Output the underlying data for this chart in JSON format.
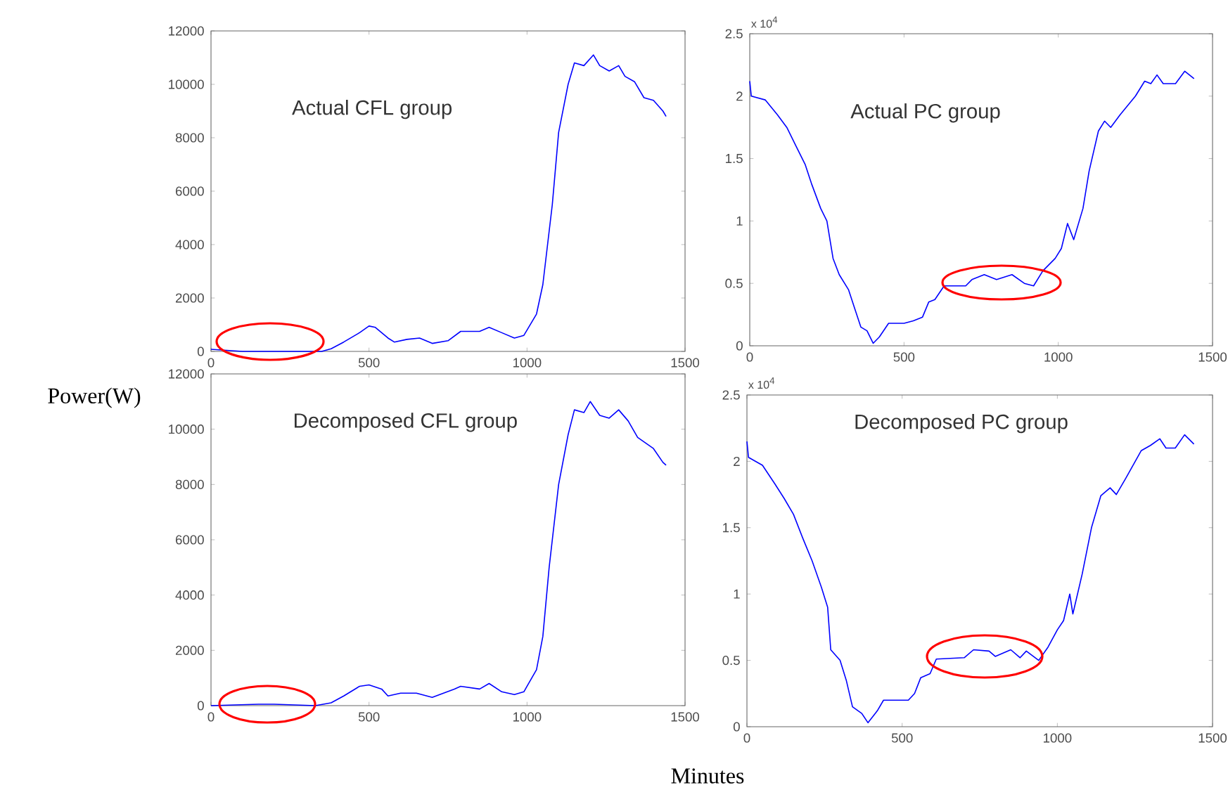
{
  "chart_data": [
    {
      "type": "line",
      "title": "Actual CFL group",
      "ylabel": "Power(W)",
      "color": "#0000ff",
      "x": [
        0,
        100,
        350,
        380,
        420,
        470,
        500,
        520,
        560,
        580,
        620,
        660,
        700,
        750,
        790,
        850,
        880,
        920,
        960,
        990,
        1000,
        1030,
        1050,
        1080,
        1100,
        1130,
        1150,
        1180,
        1210,
        1230,
        1260,
        1290,
        1310,
        1340,
        1370,
        1400,
        1430,
        1440
      ],
      "values": [
        80,
        0,
        0,
        100,
        350,
        700,
        950,
        900,
        500,
        350,
        450,
        500,
        300,
        400,
        750,
        750,
        900,
        700,
        500,
        600,
        800,
        1400,
        2500,
        5500,
        8200,
        10000,
        10800,
        10700,
        11100,
        10700,
        10500,
        10700,
        10300,
        10100,
        9500,
        9400,
        9000,
        8800
      ],
      "xlim": [
        0,
        1500
      ],
      "ylim": [
        0,
        12000
      ],
      "xticks": [
        0,
        500,
        1000,
        1500
      ],
      "yticks": [
        0,
        2000,
        4000,
        6000,
        8000,
        10000,
        12000
      ]
    },
    {
      "type": "line",
      "title": "Actual PC group",
      "color": "#0000ff",
      "annotations": [
        "x 10$^{4}$"
      ],
      "x": [
        0,
        5,
        50,
        90,
        120,
        150,
        180,
        200,
        230,
        250,
        270,
        290,
        320,
        340,
        360,
        380,
        400,
        420,
        450,
        500,
        530,
        560,
        580,
        600,
        630,
        700,
        720,
        760,
        800,
        850,
        890,
        920,
        950,
        990,
        1010,
        1030,
        1050,
        1080,
        1100,
        1130,
        1150,
        1170,
        1200,
        1250,
        1280,
        1300,
        1320,
        1340,
        1380,
        1410,
        1440
      ],
      "values": [
        2.12,
        2.0,
        1.97,
        1.85,
        1.75,
        1.6,
        1.45,
        1.3,
        1.1,
        1.0,
        0.7,
        0.57,
        0.45,
        0.3,
        0.15,
        0.12,
        0.02,
        0.07,
        0.18,
        0.18,
        0.2,
        0.23,
        0.35,
        0.37,
        0.48,
        0.48,
        0.53,
        0.57,
        0.53,
        0.57,
        0.5,
        0.48,
        0.6,
        0.7,
        0.78,
        0.98,
        0.85,
        1.1,
        1.4,
        1.72,
        1.8,
        1.75,
        1.85,
        2.0,
        2.12,
        2.1,
        2.17,
        2.1,
        2.1,
        2.2,
        2.14
      ],
      "xlim": [
        0,
        1500
      ],
      "ylim": [
        0,
        2.5
      ],
      "xticks": [
        0,
        500,
        1000,
        1500
      ],
      "yticks": [
        0,
        0.5,
        1,
        1.5,
        2,
        2.5
      ]
    },
    {
      "type": "line",
      "title": "Decomposed  CFL group",
      "xlabel": "Minutes",
      "color": "#0000ff",
      "x": [
        0,
        150,
        200,
        330,
        380,
        420,
        470,
        500,
        540,
        560,
        600,
        650,
        700,
        770,
        790,
        850,
        880,
        920,
        960,
        990,
        1000,
        1030,
        1050,
        1070,
        1100,
        1130,
        1150,
        1180,
        1200,
        1230,
        1260,
        1290,
        1320,
        1350,
        1400,
        1430,
        1440
      ],
      "values": [
        0,
        50,
        50,
        0,
        100,
        350,
        700,
        750,
        600,
        350,
        450,
        450,
        300,
        600,
        700,
        600,
        800,
        500,
        400,
        500,
        700,
        1300,
        2500,
        5000,
        8000,
        9800,
        10700,
        10600,
        11000,
        10500,
        10400,
        10700,
        10300,
        9700,
        9300,
        8800,
        8700
      ],
      "xlim": [
        0,
        1500
      ],
      "ylim": [
        0,
        12000
      ],
      "xticks": [
        0,
        500,
        1000,
        1500
      ],
      "yticks": [
        0,
        2000,
        4000,
        6000,
        8000,
        10000,
        12000
      ]
    },
    {
      "type": "line",
      "title": "Decomposed  PC group",
      "color": "#0000ff",
      "annotations": [
        "x 10$^{4}$"
      ],
      "x": [
        0,
        5,
        50,
        90,
        120,
        150,
        180,
        210,
        240,
        260,
        270,
        300,
        320,
        340,
        370,
        390,
        420,
        440,
        520,
        540,
        560,
        590,
        610,
        700,
        730,
        780,
        800,
        850,
        880,
        900,
        940,
        970,
        1000,
        1020,
        1040,
        1050,
        1080,
        1110,
        1140,
        1170,
        1190,
        1220,
        1270,
        1300,
        1330,
        1350,
        1380,
        1410,
        1440
      ],
      "values": [
        2.15,
        2.03,
        1.97,
        1.83,
        1.72,
        1.6,
        1.42,
        1.25,
        1.05,
        0.9,
        0.58,
        0.5,
        0.35,
        0.15,
        0.1,
        0.03,
        0.12,
        0.2,
        0.2,
        0.25,
        0.37,
        0.4,
        0.51,
        0.52,
        0.58,
        0.57,
        0.53,
        0.58,
        0.52,
        0.57,
        0.5,
        0.6,
        0.73,
        0.8,
        1.0,
        0.85,
        1.15,
        1.5,
        1.74,
        1.8,
        1.75,
        1.87,
        2.08,
        2.12,
        2.17,
        2.1,
        2.1,
        2.2,
        2.13
      ],
      "xlim": [
        0,
        1500
      ],
      "ylim": [
        0,
        2.5
      ],
      "xticks": [
        0,
        500,
        1000,
        1500
      ],
      "yticks": [
        0,
        0.5,
        1,
        1.5,
        2,
        2.5
      ]
    }
  ]
}
